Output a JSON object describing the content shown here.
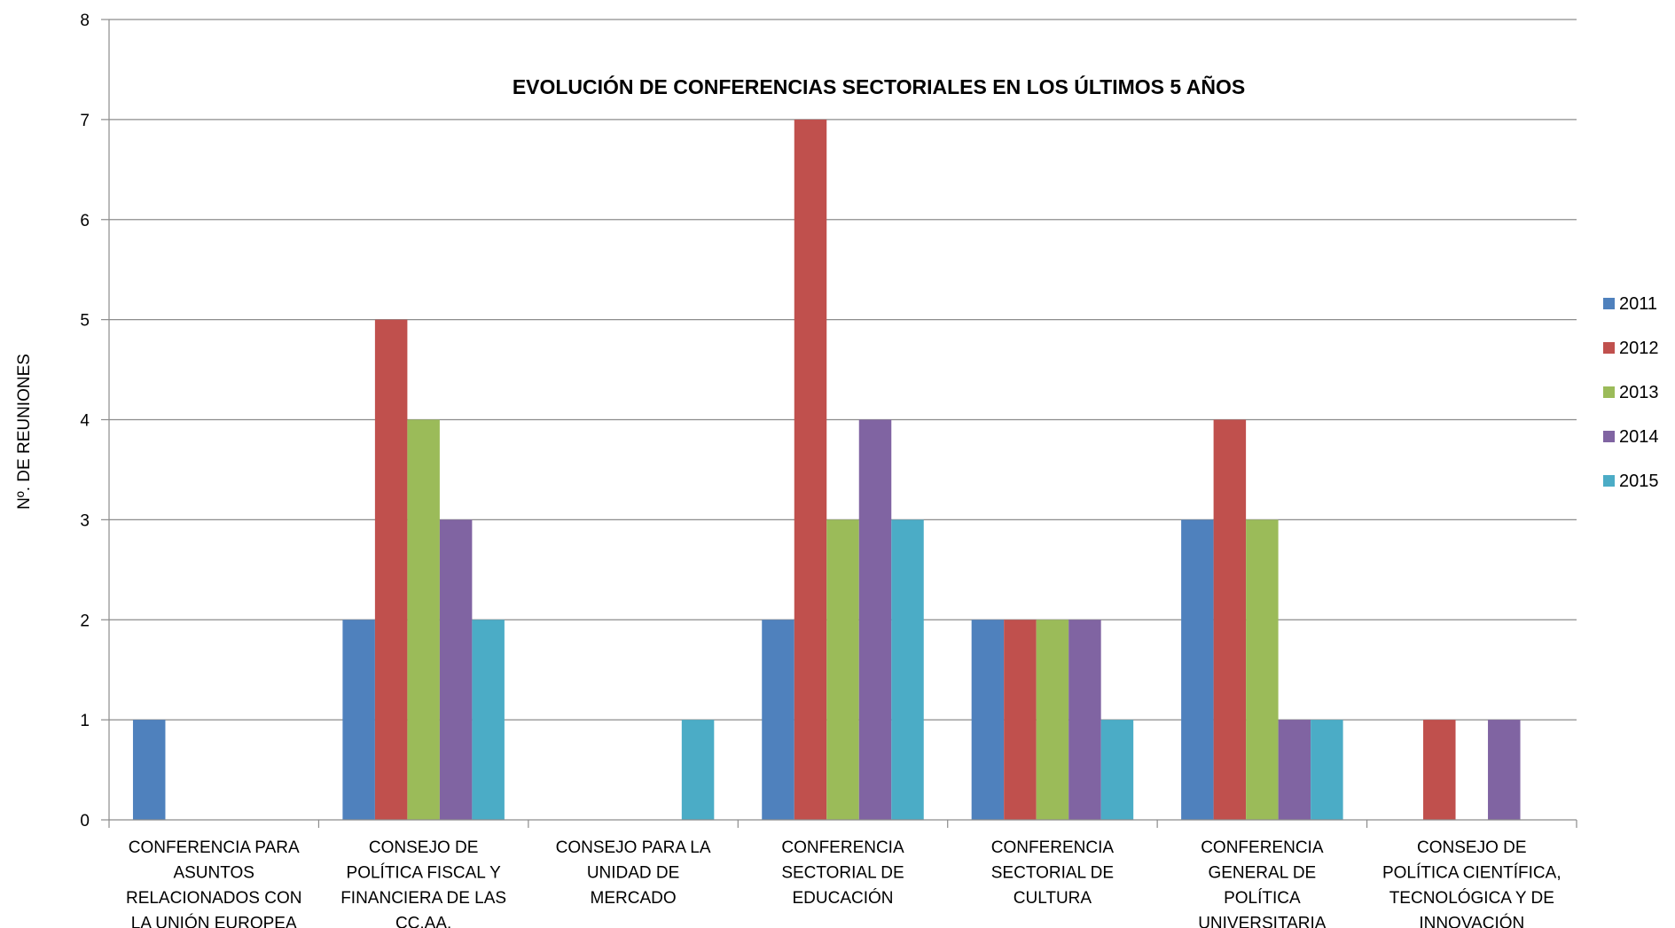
{
  "chart_data": {
    "type": "bar",
    "title": "EVOLUCIÓN DE CONFERENCIAS SECTORIALES EN LOS ÚLTIMOS 5 AÑOS",
    "xlabel": "",
    "ylabel": "Nº.  DE  REUNIONES",
    "ylim": [
      0,
      8
    ],
    "yticks": [
      0,
      1,
      2,
      3,
      4,
      5,
      6,
      7,
      8
    ],
    "grid": "horizontal",
    "legend_position": "right",
    "categories": [
      [
        "CONFERENCIA PARA",
        "ASUNTOS",
        "RELACIONADOS CON",
        "LA UNIÓN EUROPEA"
      ],
      [
        "CONSEJO DE",
        "POLÍTICA FISCAL Y",
        "FINANCIERA DE LAS",
        "CC.AA."
      ],
      [
        "CONSEJO PARA LA",
        "UNIDAD DE",
        "MERCADO"
      ],
      [
        "CONFERENCIA",
        "SECTORIAL DE",
        "EDUCACIÓN"
      ],
      [
        "CONFERENCIA",
        "SECTORIAL DE",
        "CULTURA"
      ],
      [
        "CONFERENCIA",
        "GENERAL DE",
        "POLÍTICA",
        "UNIVERSITARIA"
      ],
      [
        "CONSEJO DE",
        "POLÍTICA CIENTÍFICA,",
        "TECNOLÓGICA Y DE",
        "INNOVACIÓN"
      ]
    ],
    "series": [
      {
        "name": "2011",
        "color": "#4F81BD",
        "values": [
          1,
          2,
          0,
          2,
          2,
          3,
          0
        ]
      },
      {
        "name": "2012",
        "color": "#C0504D",
        "values": [
          0,
          5,
          0,
          7,
          2,
          4,
          1
        ]
      },
      {
        "name": "2013",
        "color": "#9BBB59",
        "values": [
          0,
          4,
          0,
          3,
          2,
          3,
          0
        ]
      },
      {
        "name": "2014",
        "color": "#8064A2",
        "values": [
          0,
          3,
          0,
          4,
          2,
          1,
          1
        ]
      },
      {
        "name": "2015",
        "color": "#4BACC6",
        "values": [
          0,
          2,
          1,
          3,
          1,
          1,
          0
        ]
      }
    ]
  }
}
